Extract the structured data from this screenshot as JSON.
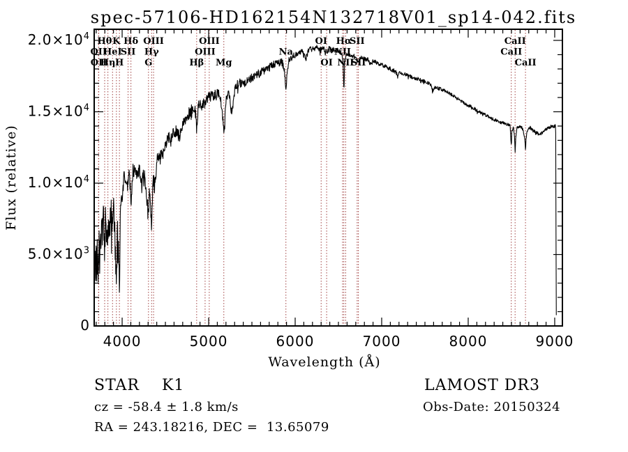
{
  "colors": {
    "background": "#ffffff",
    "spectrum": "#000000",
    "line_marker": "#a04040",
    "axis": "#000000"
  },
  "annotations": {
    "class_label": "STAR    K1",
    "survey": "LAMOST DR3",
    "cz": "cz = -58.4 ± 1.8 km/s",
    "obs_date": "Obs-Date: 20150324",
    "radec": "RA = 243.18216, DEC =  13.65079"
  },
  "chart_data": {
    "type": "line",
    "title": "spec-57106-HD162154N132718V01_sp14-042.fits",
    "xlabel": "Wavelength (Å)",
    "ylabel": "Flux (relative)",
    "xlim": [
      3677,
      9089
    ],
    "ylim": [
      0,
      20780
    ],
    "x_minor_step": 100,
    "y_minor_step": 1000,
    "grid": false,
    "legend": false,
    "xticks": [
      {
        "value": 4000,
        "label": "4000"
      },
      {
        "value": 5000,
        "label": "5000"
      },
      {
        "value": 6000,
        "label": "6000"
      },
      {
        "value": 7000,
        "label": "7000"
      },
      {
        "value": 8000,
        "label": "8000"
      },
      {
        "value": 9000,
        "label": "9000"
      }
    ],
    "yticks": [
      {
        "value": 0,
        "base": "0",
        "exp": ""
      },
      {
        "value": 5000,
        "base": "5.0×10",
        "exp": "3"
      },
      {
        "value": 10000,
        "base": "1.0×10",
        "exp": "4"
      },
      {
        "value": 15000,
        "base": "1.5×10",
        "exp": "4"
      },
      {
        "value": 20000,
        "base": "2.0×10",
        "exp": "4"
      }
    ],
    "spectral_lines": [
      {
        "label": "Hθ",
        "wavelength": 3798.0,
        "row": 1
      },
      {
        "label": "OII",
        "wavelength": 3727.1,
        "row": 2
      },
      {
        "label": "OII",
        "wavelength": 3729.9,
        "row": 3
      },
      {
        "label": "Hη",
        "wavelength": 3835.4,
        "row": 3
      },
      {
        "label": "HeI",
        "wavelength": 3889.0,
        "row": 2
      },
      {
        "label": "K",
        "wavelength": 3933.7,
        "row": 1
      },
      {
        "label": "H",
        "wavelength": 3968.5,
        "row": 3
      },
      {
        "label": "SII",
        "wavelength": 4068.6,
        "row": 2
      },
      {
        "label": "Hδ",
        "wavelength": 4101.7,
        "row": 1
      },
      {
        "label": "G",
        "wavelength": 4304.4,
        "row": 3
      },
      {
        "label": "Hγ",
        "wavelength": 4340.5,
        "row": 2
      },
      {
        "label": "OIII",
        "wavelength": 4363.2,
        "row": 1
      },
      {
        "label": "Hβ",
        "wavelength": 4861.3,
        "row": 3
      },
      {
        "label": "OIII",
        "wavelength": 4958.9,
        "row": 2
      },
      {
        "label": "OIII",
        "wavelength": 5006.8,
        "row": 1
      },
      {
        "label": "Mg",
        "wavelength": 5175.3,
        "row": 3
      },
      {
        "label": "Na",
        "wavelength": 5892.9,
        "row": 2
      },
      {
        "label": "OI",
        "wavelength": 6300.3,
        "row": 1
      },
      {
        "label": "OI",
        "wavelength": 6363.8,
        "row": 3
      },
      {
        "label": "NII",
        "wavelength": 6548.1,
        "row": 2
      },
      {
        "label": "Hα",
        "wavelength": 6562.8,
        "row": 1
      },
      {
        "label": "NII",
        "wavelength": 6583.4,
        "row": 3
      },
      {
        "label": "SII",
        "wavelength": 6716.4,
        "row": 1
      },
      {
        "label": "SII",
        "wavelength": 6730.8,
        "row": 3
      },
      {
        "label": "CaII",
        "wavelength": 8498.0,
        "row": 2
      },
      {
        "label": "CaII",
        "wavelength": 8542.1,
        "row": 1
      },
      {
        "label": "CaII",
        "wavelength": 8662.1,
        "row": 3
      }
    ],
    "series": [
      {
        "name": "spectrum",
        "anchors": [
          [
            3688,
            5200
          ],
          [
            3695,
            3200
          ],
          [
            3700,
            6200
          ],
          [
            3706,
            2400
          ],
          [
            3712,
            5800
          ],
          [
            3718,
            4400
          ],
          [
            3727,
            3600
          ],
          [
            3734,
            6600
          ],
          [
            3741,
            4600
          ],
          [
            3750,
            7200
          ],
          [
            3758,
            5400
          ],
          [
            3766,
            7000
          ],
          [
            3775,
            6200
          ],
          [
            3785,
            7600
          ],
          [
            3798,
            5400
          ],
          [
            3808,
            7200
          ],
          [
            3820,
            6400
          ],
          [
            3835,
            5800
          ],
          [
            3845,
            7600
          ],
          [
            3858,
            6800
          ],
          [
            3870,
            7800
          ],
          [
            3880,
            7200
          ],
          [
            3889,
            6600
          ],
          [
            3900,
            7800
          ],
          [
            3912,
            6800
          ],
          [
            3922,
            5200
          ],
          [
            3933,
            2400
          ],
          [
            3944,
            6400
          ],
          [
            3955,
            5200
          ],
          [
            3968,
            3000
          ],
          [
            3980,
            7000
          ],
          [
            3992,
            8800
          ],
          [
            4005,
            9400
          ],
          [
            4020,
            10300
          ],
          [
            4040,
            10600
          ],
          [
            4055,
            10200
          ],
          [
            4068,
            9700
          ],
          [
            4082,
            10700
          ],
          [
            4092,
            9800
          ],
          [
            4101,
            8300
          ],
          [
            4112,
            10300
          ],
          [
            4125,
            10800
          ],
          [
            4145,
            11000
          ],
          [
            4165,
            10700
          ],
          [
            4185,
            10900
          ],
          [
            4205,
            10800
          ],
          [
            4227,
            9700
          ],
          [
            4245,
            10700
          ],
          [
            4262,
            10500
          ],
          [
            4280,
            9200
          ],
          [
            4295,
            8600
          ],
          [
            4304,
            8000
          ],
          [
            4315,
            9200
          ],
          [
            4328,
            8400
          ],
          [
            4340,
            6900
          ],
          [
            4352,
            9400
          ],
          [
            4363,
            10200
          ],
          [
            4383,
            9800
          ],
          [
            4400,
            11500
          ],
          [
            4420,
            11900
          ],
          [
            4435,
            11500
          ],
          [
            4455,
            12400
          ],
          [
            4470,
            12100
          ],
          [
            4481,
            11900
          ],
          [
            4500,
            12800
          ],
          [
            4520,
            13000
          ],
          [
            4540,
            13200
          ],
          [
            4560,
            12900
          ],
          [
            4580,
            13400
          ],
          [
            4600,
            13500
          ],
          [
            4620,
            13700
          ],
          [
            4640,
            13500
          ],
          [
            4668,
            13200
          ],
          [
            4690,
            14000
          ],
          [
            4710,
            14400
          ],
          [
            4730,
            14500
          ],
          [
            4760,
            14800
          ],
          [
            4790,
            15000
          ],
          [
            4820,
            15300
          ],
          [
            4845,
            15100
          ],
          [
            4861,
            13900
          ],
          [
            4880,
            15400
          ],
          [
            4900,
            15600
          ],
          [
            4920,
            15400
          ],
          [
            4940,
            15700
          ],
          [
            4957,
            15400
          ],
          [
            4980,
            15900
          ],
          [
            5000,
            16100
          ],
          [
            5020,
            16000
          ],
          [
            5040,
            16200
          ],
          [
            5060,
            16100
          ],
          [
            5080,
            16300
          ],
          [
            5100,
            16400
          ],
          [
            5130,
            16200
          ],
          [
            5155,
            15300
          ],
          [
            5168,
            14000
          ],
          [
            5175,
            13500
          ],
          [
            5185,
            14400
          ],
          [
            5200,
            15800
          ],
          [
            5220,
            16400
          ],
          [
            5240,
            16200
          ],
          [
            5256,
            15400
          ],
          [
            5270,
            14700
          ],
          [
            5285,
            15800
          ],
          [
            5300,
            16500
          ],
          [
            5320,
            16800
          ],
          [
            5340,
            16900
          ],
          [
            5360,
            17000
          ],
          [
            5390,
            17100
          ],
          [
            5420,
            17000
          ],
          [
            5450,
            17200
          ],
          [
            5480,
            17300
          ],
          [
            5520,
            17500
          ],
          [
            5560,
            17600
          ],
          [
            5600,
            17800
          ],
          [
            5640,
            17900
          ],
          [
            5680,
            18000
          ],
          [
            5720,
            18200
          ],
          [
            5760,
            18300
          ],
          [
            5800,
            18400
          ],
          [
            5840,
            18500
          ],
          [
            5870,
            18200
          ],
          [
            5885,
            17200
          ],
          [
            5893,
            16500
          ],
          [
            5905,
            17600
          ],
          [
            5925,
            18500
          ],
          [
            5950,
            18800
          ],
          [
            5980,
            19000
          ],
          [
            6010,
            19000
          ],
          [
            6040,
            19100
          ],
          [
            6080,
            19200
          ],
          [
            6122,
            18700
          ],
          [
            6150,
            19200
          ],
          [
            6180,
            19400
          ],
          [
            6220,
            19400
          ],
          [
            6260,
            19500
          ],
          [
            6300,
            19300
          ],
          [
            6320,
            19400
          ],
          [
            6340,
            19400
          ],
          [
            6363,
            19100
          ],
          [
            6390,
            19400
          ],
          [
            6420,
            19300
          ],
          [
            6450,
            19350
          ],
          [
            6480,
            19300
          ],
          [
            6510,
            19250
          ],
          [
            6540,
            19100
          ],
          [
            6555,
            18200
          ],
          [
            6563,
            16300
          ],
          [
            6572,
            18400
          ],
          [
            6590,
            19000
          ],
          [
            6620,
            19000
          ],
          [
            6650,
            18950
          ],
          [
            6680,
            18900
          ],
          [
            6700,
            18850
          ],
          [
            6717,
            18600
          ],
          [
            6731,
            18550
          ],
          [
            6760,
            18800
          ],
          [
            6800,
            18700
          ],
          [
            6840,
            18650
          ],
          [
            6867,
            18300
          ],
          [
            6900,
            18550
          ],
          [
            6940,
            18450
          ],
          [
            6980,
            18350
          ],
          [
            7020,
            18250
          ],
          [
            7060,
            18150
          ],
          [
            7100,
            18000
          ],
          [
            7140,
            17900
          ],
          [
            7180,
            17650
          ],
          [
            7220,
            17750
          ],
          [
            7260,
            17650
          ],
          [
            7300,
            17550
          ],
          [
            7340,
            17450
          ],
          [
            7380,
            17350
          ],
          [
            7420,
            17300
          ],
          [
            7460,
            17200
          ],
          [
            7510,
            17100
          ],
          [
            7560,
            16950
          ],
          [
            7594,
            16500
          ],
          [
            7620,
            16750
          ],
          [
            7660,
            16650
          ],
          [
            7700,
            16550
          ],
          [
            7740,
            16450
          ],
          [
            7780,
            16300
          ],
          [
            7820,
            16150
          ],
          [
            7860,
            16000
          ],
          [
            7900,
            15800
          ],
          [
            7940,
            15650
          ],
          [
            7980,
            15500
          ],
          [
            8020,
            15400
          ],
          [
            8060,
            15250
          ],
          [
            8100,
            15100
          ],
          [
            8140,
            14950
          ],
          [
            8180,
            14850
          ],
          [
            8220,
            14700
          ],
          [
            8260,
            14550
          ],
          [
            8300,
            14450
          ],
          [
            8340,
            14350
          ],
          [
            8380,
            14250
          ],
          [
            8420,
            14200
          ],
          [
            8460,
            14100
          ],
          [
            8485,
            14050
          ],
          [
            8492,
            13200
          ],
          [
            8498,
            12700
          ],
          [
            8505,
            13600
          ],
          [
            8520,
            14000
          ],
          [
            8535,
            13400
          ],
          [
            8542,
            12100
          ],
          [
            8550,
            13300
          ],
          [
            8565,
            13900
          ],
          [
            8585,
            13950
          ],
          [
            8605,
            14000
          ],
          [
            8630,
            13800
          ],
          [
            8650,
            13300
          ],
          [
            8662,
            12400
          ],
          [
            8672,
            13400
          ],
          [
            8690,
            13800
          ],
          [
            8715,
            13900
          ],
          [
            8740,
            13750
          ],
          [
            8770,
            13600
          ],
          [
            8800,
            13500
          ],
          [
            8830,
            13400
          ],
          [
            8860,
            13550
          ],
          [
            8890,
            13750
          ],
          [
            8920,
            13850
          ],
          [
            8950,
            13950
          ],
          [
            8975,
            14050
          ],
          [
            9000,
            13950
          ],
          [
            9008,
            14050
          ],
          [
            9013,
            13400
          ],
          [
            9016,
            2600
          ],
          [
            9019,
            500
          ]
        ],
        "noise_segments": [
          [
            3688,
            3992,
            1300
          ],
          [
            3992,
            4400,
            550
          ],
          [
            4400,
            4900,
            420
          ],
          [
            4900,
            5400,
            360
          ],
          [
            5400,
            6000,
            280
          ],
          [
            6000,
            6550,
            200
          ],
          [
            6550,
            7200,
            150
          ],
          [
            7200,
            8200,
            120
          ],
          [
            8200,
            9008,
            110
          ],
          [
            9008,
            9019,
            150
          ]
        ]
      }
    ]
  }
}
